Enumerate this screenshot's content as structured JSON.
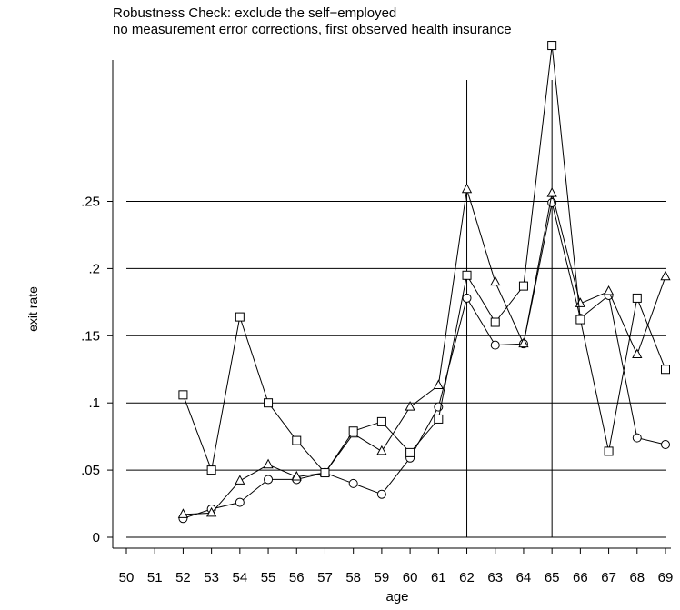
{
  "chart_data": {
    "type": "line",
    "title": "Robustness Check: exclude the self−employed",
    "subtitle": "no measurement error corrections, first observed health insurance",
    "xlabel": "age",
    "ylabel": "exit rate",
    "xlim": [
      50,
      69
    ],
    "ylim": [
      0,
      0.25
    ],
    "x_ticks": [
      50,
      51,
      52,
      53,
      54,
      55,
      56,
      57,
      58,
      59,
      60,
      61,
      62,
      63,
      64,
      65,
      66,
      67,
      68,
      69
    ],
    "x_tick_labels": [
      "50",
      "51",
      "52",
      "53",
      "54",
      "55",
      "56",
      "57",
      "58",
      "59",
      "60",
      "61",
      "62",
      "63",
      "64",
      "65",
      "66",
      "67",
      "68",
      "69"
    ],
    "y_ticks": [
      0,
      0.05,
      0.1,
      0.15,
      0.2,
      0.25
    ],
    "y_tick_labels": [
      "0",
      ".05",
      ".1",
      ".15",
      ".2",
      ".25"
    ],
    "grid": "horizontal",
    "reference_lines_x": [
      62,
      65
    ],
    "series": [
      {
        "marker": "circle",
        "x": [
          52,
          53,
          54,
          55,
          56,
          57,
          58,
          59,
          60,
          61,
          62,
          63,
          64,
          65,
          66,
          67,
          68,
          69
        ],
        "values": [
          0.014,
          0.021,
          0.026,
          0.043,
          0.043,
          0.048,
          0.04,
          0.032,
          0.059,
          0.097,
          0.178,
          0.143,
          0.144,
          0.249,
          0.163,
          0.18,
          0.074,
          0.069
        ]
      },
      {
        "marker": "triangle",
        "x": [
          52,
          53,
          54,
          55,
          56,
          57,
          58,
          59,
          60,
          61,
          62,
          63,
          64,
          65,
          66,
          67,
          68,
          69
        ],
        "values": [
          0.017,
          0.018,
          0.042,
          0.054,
          0.045,
          0.048,
          0.077,
          0.064,
          0.097,
          0.113,
          0.259,
          0.19,
          0.144,
          0.256,
          0.174,
          0.183,
          0.136,
          0.194
        ]
      },
      {
        "marker": "square",
        "x": [
          52,
          53,
          54,
          55,
          56,
          57,
          58,
          59,
          60,
          61,
          62,
          63,
          64,
          65,
          66,
          67,
          68,
          69
        ],
        "values": [
          0.106,
          0.05,
          0.164,
          0.1,
          0.072,
          0.048,
          0.079,
          0.086,
          0.063,
          0.088,
          0.195,
          0.16,
          0.187,
          0.366,
          0.162,
          0.064,
          0.178,
          0.125
        ]
      }
    ]
  }
}
